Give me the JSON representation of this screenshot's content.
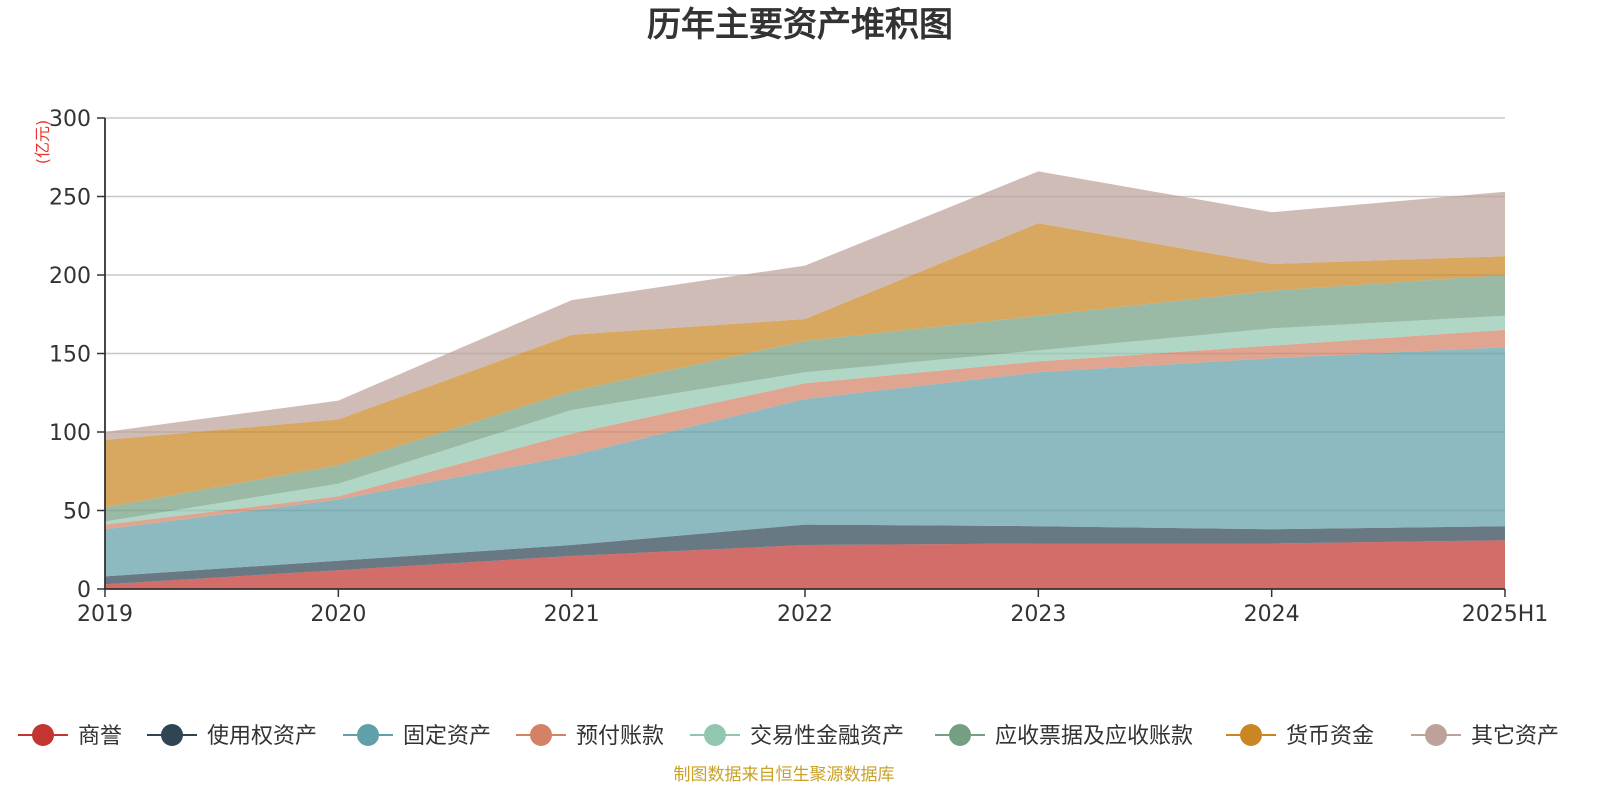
{
  "chart_data": {
    "type": "area",
    "title": "历年主要资产堆积图",
    "y_unit": "(亿元)",
    "x": [
      "2019",
      "2020",
      "2021",
      "2022",
      "2023",
      "2024",
      "2025H1"
    ],
    "ylim": [
      0,
      300
    ],
    "yticks": [
      0,
      50,
      100,
      150,
      200,
      250,
      300
    ],
    "grid": true,
    "stacked": true,
    "legend_position": "bottom",
    "series": [
      {
        "name": "商誉",
        "color": "#c23531",
        "values": [
          3,
          12,
          21,
          28,
          29,
          29,
          31
        ]
      },
      {
        "name": "使用权资产",
        "color": "#2f4554",
        "values": [
          5,
          6,
          7,
          13,
          11,
          9,
          9
        ]
      },
      {
        "name": "固定资产",
        "color": "#61a0a8",
        "values": [
          30,
          39,
          57,
          80,
          98,
          109,
          114
        ]
      },
      {
        "name": "预付账款",
        "color": "#d48265",
        "values": [
          3,
          2,
          14,
          10,
          7,
          8,
          11
        ]
      },
      {
        "name": "交易性金融资产",
        "color": "#91c7ae",
        "values": [
          2,
          8,
          15,
          7,
          7,
          11,
          9
        ]
      },
      {
        "name": "应收票据及应收账款",
        "color": "#749f83",
        "values": [
          9,
          12,
          12,
          20,
          22,
          24,
          26
        ]
      },
      {
        "name": "货币资金",
        "color": "#ca8622",
        "values": [
          43,
          29,
          36,
          14,
          59,
          17,
          12
        ]
      },
      {
        "name": "其它资产",
        "color": "#bda29a",
        "values": [
          5,
          12,
          22,
          34,
          33,
          33,
          41
        ]
      }
    ]
  },
  "footer": "制图数据来自恒生聚源数据库"
}
